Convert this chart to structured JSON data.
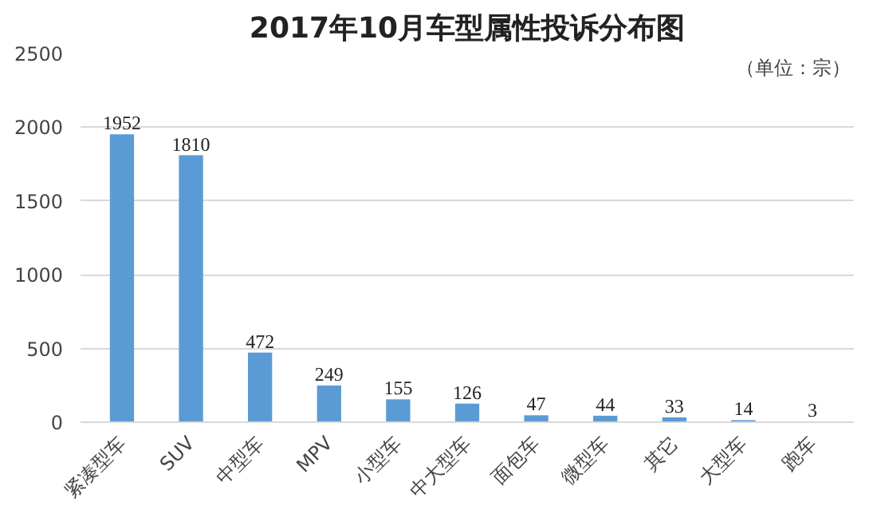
{
  "chart_data": {
    "type": "bar",
    "title": "2017年10月车型属性投诉分布图",
    "annotations": [
      "（单位：宗）"
    ],
    "categories": [
      "紧凑型车",
      "SUV",
      "中型车",
      "MPV",
      "小型车",
      "中大型车",
      "面包车",
      "微型车",
      "其它",
      "大型车",
      "跑车"
    ],
    "values": [
      1952,
      1810,
      472,
      249,
      155,
      126,
      47,
      44,
      33,
      14,
      3
    ],
    "color": "#5b9bd5",
    "ylim": [
      0,
      2500
    ],
    "yticks": [
      0,
      500,
      1000,
      1500,
      2000,
      2500
    ],
    "grid": "y",
    "data_labels": true
  }
}
